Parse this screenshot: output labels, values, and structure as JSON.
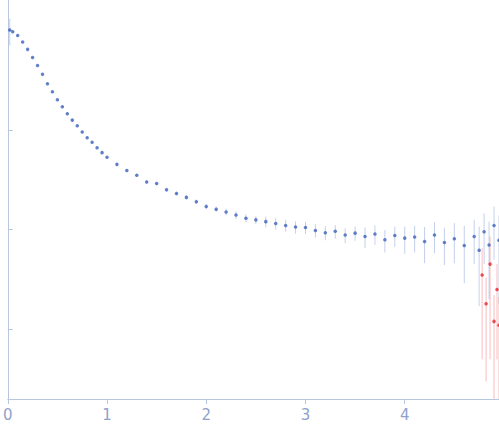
{
  "chart_data": {
    "type": "scatter",
    "log": "y",
    "grid": false,
    "tick_labels": "x",
    "marker": "circle",
    "xlim": [
      0,
      4.95
    ],
    "xticks": [
      0,
      1,
      2,
      3,
      4
    ],
    "ylim": [
      0.0002,
      2
    ],
    "yticks": [
      0.001,
      0.01,
      0.1,
      1
    ],
    "series": [
      {
        "color": "#3d63bd",
        "x": [
          0.02,
          0.05,
          0.1,
          0.15,
          0.2,
          0.25,
          0.3,
          0.35,
          0.4,
          0.45,
          0.5,
          0.55,
          0.6,
          0.65,
          0.7,
          0.75,
          0.8,
          0.85,
          0.9,
          0.95,
          1.0,
          1.1,
          1.2,
          1.3,
          1.4,
          1.5,
          1.6,
          1.7,
          1.8,
          1.9,
          2.0,
          2.1,
          2.2,
          2.3,
          2.4,
          2.5,
          2.6,
          2.7,
          2.8,
          2.9,
          3.0,
          3.1,
          3.2,
          3.3,
          3.4,
          3.5,
          3.6,
          3.7,
          3.8,
          3.9,
          4.0,
          4.1,
          4.2,
          4.3,
          4.4,
          4.5,
          4.6,
          4.7,
          4.75,
          4.8,
          4.85,
          4.9,
          4.95
        ],
        "values": [
          1.0,
          0.96,
          0.88,
          0.76,
          0.64,
          0.53,
          0.44,
          0.36,
          0.29,
          0.24,
          0.2,
          0.17,
          0.145,
          0.125,
          0.11,
          0.095,
          0.083,
          0.075,
          0.066,
          0.059,
          0.053,
          0.045,
          0.039,
          0.035,
          0.03,
          0.029,
          0.025,
          0.023,
          0.021,
          0.019,
          0.017,
          0.016,
          0.015,
          0.014,
          0.013,
          0.0125,
          0.012,
          0.0115,
          0.011,
          0.0106,
          0.0105,
          0.0098,
          0.0093,
          0.0096,
          0.0088,
          0.0092,
          0.0085,
          0.009,
          0.0079,
          0.0087,
          0.0082,
          0.0084,
          0.0076,
          0.0088,
          0.0074,
          0.0081,
          0.0069,
          0.0085,
          0.0062,
          0.0095,
          0.007,
          0.011,
          0.0078
        ],
        "errors": [
          0.3,
          0.01,
          0.008,
          0.007,
          0.006,
          0.005,
          0.004,
          0.004,
          0.003,
          0.003,
          0.002,
          0.002,
          0.002,
          0.002,
          0.0015,
          0.0015,
          0.0012,
          0.0012,
          0.001,
          0.001,
          0.001,
          0.001,
          0.001,
          0.001,
          0.001,
          0.001,
          0.001,
          0.001,
          0.001,
          0.001,
          0.001,
          0.001,
          0.0012,
          0.0012,
          0.0012,
          0.0012,
          0.0015,
          0.0015,
          0.0015,
          0.0015,
          0.0015,
          0.0015,
          0.0015,
          0.0015,
          0.0015,
          0.0015,
          0.002,
          0.002,
          0.002,
          0.002,
          0.0025,
          0.0025,
          0.003,
          0.003,
          0.003,
          0.0035,
          0.004,
          0.004,
          0.0045,
          0.005,
          0.005,
          0.006,
          0.006
        ]
      },
      {
        "color": "#e8262a",
        "x": [
          4.78,
          4.82,
          4.86,
          4.9,
          4.93,
          4.95
        ],
        "values": [
          0.0035,
          0.0018,
          0.0045,
          0.0012,
          0.0025,
          0.0011
        ],
        "errors": [
          0.003,
          0.0015,
          0.004,
          0.001,
          0.002,
          0.001
        ]
      }
    ]
  }
}
